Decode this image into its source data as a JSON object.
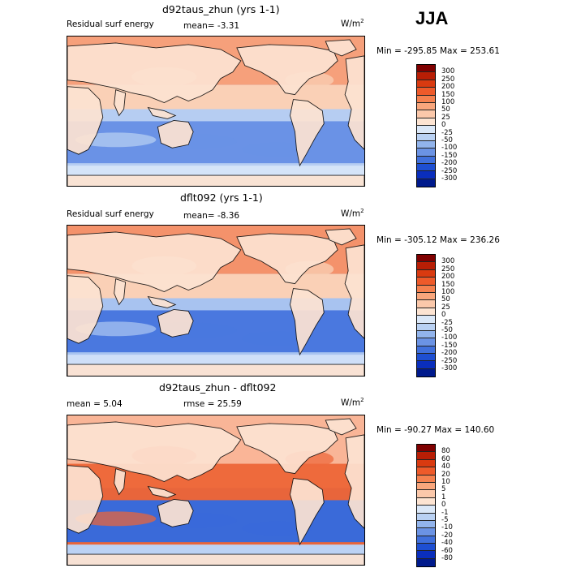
{
  "season": "JJA",
  "units": {
    "base": "W/m",
    "exp": "2"
  },
  "panels": [
    {
      "id": "top",
      "title": "d92taus_zhun (yrs 1-1)",
      "subtitle": "Residual surf energy",
      "mean": "mean=   -3.31",
      "minmax": "Min = -295.85 Max = 253.61",
      "levels": [
        "300",
        "250",
        "200",
        "150",
        "100",
        "50",
        "25",
        "0",
        "-25",
        "-50",
        "-100",
        "-150",
        "-200",
        "-250",
        "-300"
      ],
      "colors": [
        "#7f0000",
        "#b81e05",
        "#d93a10",
        "#ee5a2a",
        "#f5814f",
        "#f9a67c",
        "#fbc8aa",
        "#fde4d2",
        "#dbe8f8",
        "#b9d1f3",
        "#92b4ec",
        "#6b93e4",
        "#4070dc",
        "#1e4fd2",
        "#0a2ebc",
        "#001a8c"
      ],
      "map": {
        "north": "#f6a07b",
        "tropic": "#fad0b6",
        "land": "#fde3d2",
        "south": "#6a92e6",
        "ocean_mid": "#b6cdf2",
        "antarctic": "#d5e4f8"
      },
      "stats": {
        "min": -295.85,
        "max": 253.61,
        "mean": -3.31
      }
    },
    {
      "id": "middle",
      "title": "dflt092 (yrs 1-1)",
      "subtitle": "Residual surf energy",
      "mean": "mean=   -8.36",
      "minmax": "Min = -305.12 Max = 236.26",
      "levels": [
        "300",
        "250",
        "200",
        "150",
        "100",
        "50",
        "25",
        "0",
        "-25",
        "-50",
        "-100",
        "-150",
        "-200",
        "-250",
        "-300"
      ],
      "colors": [
        "#7f0000",
        "#b81e05",
        "#d93a10",
        "#ee5a2a",
        "#f5814f",
        "#f9a67c",
        "#fbc8aa",
        "#fde4d2",
        "#dbe8f8",
        "#b9d1f3",
        "#92b4ec",
        "#6b93e4",
        "#4070dc",
        "#1e4fd2",
        "#0a2ebc",
        "#001a8c"
      ],
      "map": {
        "north": "#f4926b",
        "tropic": "#fad0b6",
        "land": "#fde3d2",
        "south": "#4a78df",
        "ocean_mid": "#a8c3f0",
        "antarctic": "#cfdff8"
      },
      "stats": {
        "min": -305.12,
        "max": 236.26,
        "mean": -8.36
      }
    },
    {
      "id": "bottom",
      "title": "d92taus_zhun - dflt092",
      "subtitle": "mean =    5.04",
      "mean": "rmse =   25.59",
      "minmax": "Min = -90.27 Max = 140.60",
      "levels": [
        "80",
        "60",
        "40",
        "20",
        "10",
        "5",
        "1",
        "0",
        "-1",
        "-5",
        "-10",
        "-20",
        "-40",
        "-60",
        "-80"
      ],
      "colors": [
        "#7f0000",
        "#b81e05",
        "#d93a10",
        "#ee5a2a",
        "#f5814f",
        "#f9a67c",
        "#fbc8aa",
        "#fde4d2",
        "#dbe8f8",
        "#b9d1f3",
        "#92b4ec",
        "#6b93e4",
        "#4070dc",
        "#1e4fd2",
        "#0a2ebc",
        "#001a8c"
      ],
      "map": {
        "north": "#f9b597",
        "tropic": "#ee6a3c",
        "land": "#fde3d2",
        "south": "#3a6ad9",
        "ocean_mid": "#e8653b",
        "antarctic": "#bcd2f4"
      },
      "stats": {
        "min": -90.27,
        "max": 140.6,
        "mean": 5.04,
        "rmse": 25.59
      }
    }
  ]
}
